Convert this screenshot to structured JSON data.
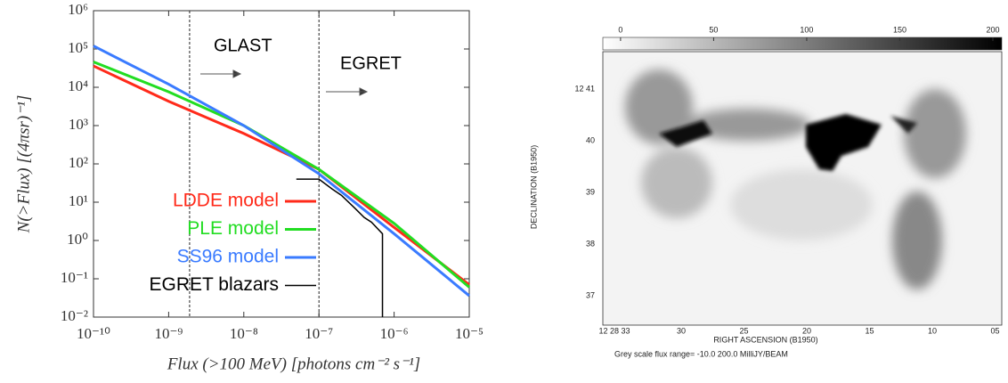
{
  "chart_data": [
    {
      "type": "line",
      "xlabel": "Flux (>100 MeV) [photons cm⁻² s⁻¹]",
      "ylabel": "N(>Flux) [(4πsr)⁻¹]",
      "log_x": true,
      "log_y": true,
      "xlim": [
        1e-10,
        1e-05
      ],
      "ylim": [
        0.01,
        1000000
      ],
      "xticks": [
        {
          "value": 1e-10,
          "label": "10⁻¹⁰"
        },
        {
          "value": 1e-09,
          "label": "10⁻⁹"
        },
        {
          "value": 1e-08,
          "label": "10⁻⁸"
        },
        {
          "value": 1e-07,
          "label": "10⁻⁷"
        },
        {
          "value": 1e-06,
          "label": "10⁻⁶"
        },
        {
          "value": 1e-05,
          "label": "10⁻⁵"
        }
      ],
      "yticks": [
        {
          "value": 0.01,
          "label": "10⁻²"
        },
        {
          "value": 0.1,
          "label": "10⁻¹"
        },
        {
          "value": 1,
          "label": "10⁰"
        },
        {
          "value": 10,
          "label": "10¹"
        },
        {
          "value": 100,
          "label": "10²"
        },
        {
          "value": 1000,
          "label": "10³"
        },
        {
          "value": 10000,
          "label": "10⁴"
        },
        {
          "value": 100000,
          "label": "10⁵"
        },
        {
          "value": 1000000,
          "label": "10⁶"
        }
      ],
      "vlines": [
        1.9e-09,
        1e-07
      ],
      "annotations": [
        {
          "text": "GLAST"
        },
        {
          "text": "EGRET"
        }
      ],
      "series": [
        {
          "name": "LDDE model",
          "color": "#ff2a1a",
          "x": [
            1e-10,
            1e-09,
            1e-08,
            1e-07,
            1e-06,
            1e-05
          ],
          "values": [
            36000,
            4300,
            620,
            72,
            2.2,
            0.07
          ]
        },
        {
          "name": "PLE model",
          "color": "#22dd22",
          "x": [
            1e-10,
            1e-09,
            1e-08,
            1e-07,
            1e-06,
            1e-05
          ],
          "values": [
            46000,
            7600,
            1000,
            72,
            2.8,
            0.06
          ]
        },
        {
          "name": "SS96 model",
          "color": "#3a7bff",
          "x": [
            1e-10,
            1e-09,
            1e-08,
            1e-07,
            1e-06,
            1e-05
          ],
          "values": [
            120000,
            12000,
            1000,
            55,
            1.5,
            0.036
          ]
        },
        {
          "name": "EGRET blazars",
          "color": "#000000",
          "x": [
            5e-08,
            1e-07,
            1.5e-07,
            2e-07,
            3e-07,
            4e-07,
            5e-07,
            7e-07,
            7e-07
          ],
          "values": [
            40,
            40,
            22,
            15,
            7,
            4,
            3,
            1.5,
            0.01
          ]
        }
      ]
    },
    {
      "type": "image",
      "colorbar_lim": [
        -10,
        200
      ],
      "colorbar_ticks": [
        0,
        50,
        100,
        150,
        200
      ],
      "xlabel": "RIGHT ASCENSION (B1950)",
      "ylabel": "DECLINATION (B1950)",
      "xtick_labels": [
        "12 28 33",
        "30",
        "25",
        "20",
        "15",
        "10",
        "05"
      ],
      "ytick_labels": [
        "12 41",
        "40",
        "39",
        "38",
        "37"
      ],
      "caption": "Grey scale flux range= -10.0 200.0 MilliJY/BEAM"
    }
  ]
}
